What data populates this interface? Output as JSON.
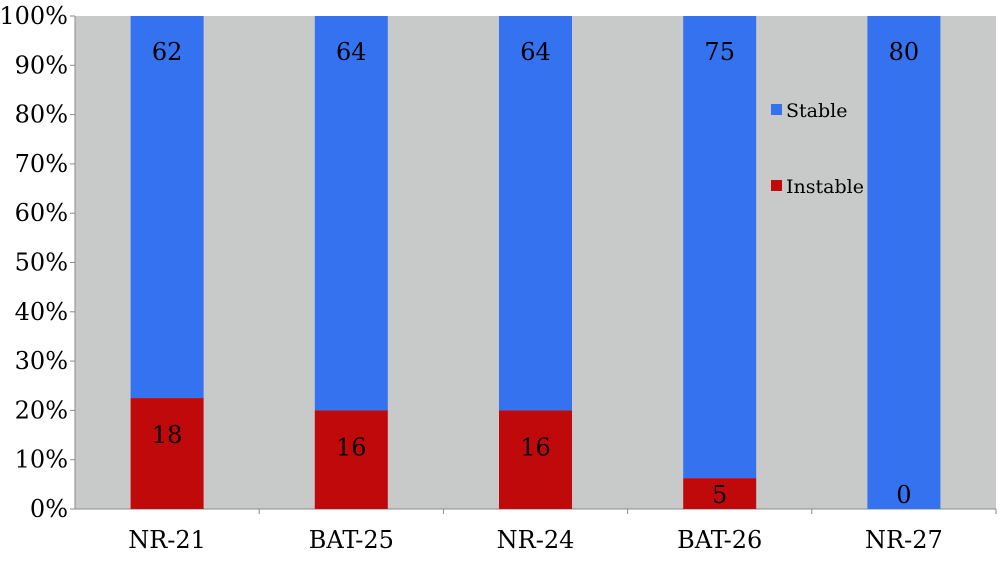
{
  "chart_data": {
    "type": "bar",
    "stacked": true,
    "normalized": true,
    "categories": [
      "NR-21",
      "BAT-25",
      "NR-24",
      "BAT-26",
      "NR-27"
    ],
    "series": [
      {
        "name": "Instable",
        "values": [
          18,
          16,
          16,
          5,
          0
        ]
      },
      {
        "name": "Stable",
        "values": [
          62,
          64,
          64,
          75,
          80
        ]
      }
    ],
    "y_ticks": [
      "0%",
      "10%",
      "20%",
      "30%",
      "40%",
      "50%",
      "60%",
      "70%",
      "80%",
      "90%",
      "100%"
    ],
    "ylim": [
      0,
      100
    ],
    "grid": false,
    "legend": {
      "placement": "right-inside",
      "order": [
        "Stable",
        "Instable"
      ]
    },
    "colors": {
      "Stable": "#3572f0",
      "Instable": "#c0090a",
      "plot_background": "#c7cac8"
    }
  }
}
